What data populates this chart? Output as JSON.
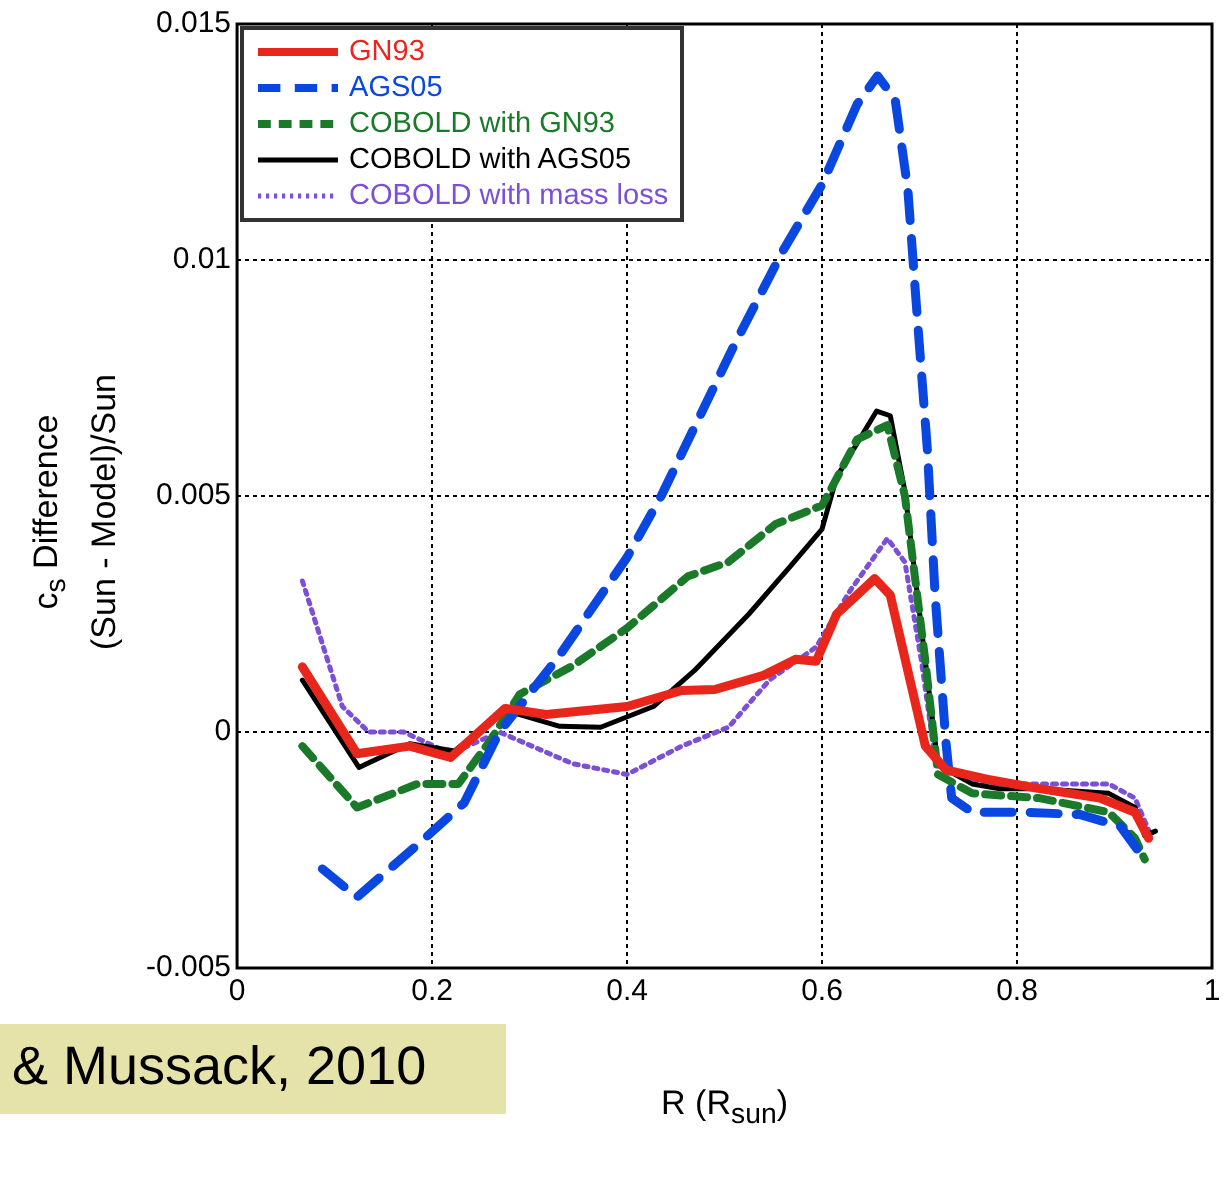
{
  "chart_data": {
    "type": "line",
    "xlabel": "R (R$_{sun}$)",
    "ylabel": "c$_{s}$ Difference\n(Sun - Model)/Sun",
    "xlim": [
      0,
      1
    ],
    "xticks": [
      0,
      0.2,
      0.4,
      0.6,
      0.8,
      1
    ],
    "ylim": [
      -0.005,
      0.015
    ],
    "yticks": [
      -0.005,
      0,
      0.005,
      0.01,
      0.015
    ],
    "grid": true,
    "legend": "top left",
    "marker": "none",
    "annotations": [
      "& Mussack, 2010"
    ],
    "series": [
      {
        "name": "GN93",
        "color": "#e8261c",
        "line_style": "solid",
        "x": [
          0.067,
          0.123,
          0.177,
          0.219,
          0.275,
          0.317,
          0.4,
          0.456,
          0.49,
          0.54,
          0.573,
          0.594,
          0.615,
          0.654,
          0.67,
          0.706,
          0.727,
          0.769,
          0.823,
          0.885,
          0.921,
          0.935
        ],
        "values": [
          0.00138,
          -0.00046,
          -0.0003,
          -0.00054,
          0.0005,
          0.00037,
          0.00054,
          0.00088,
          0.0009,
          0.0012,
          0.00154,
          0.0015,
          0.0025,
          0.00325,
          0.0029,
          -0.0003,
          -0.0008,
          -0.001,
          -0.0012,
          -0.0014,
          -0.0017,
          -0.00225
        ]
      },
      {
        "name": "AGS05",
        "color": "#0a46e0",
        "line_style": "dashed",
        "x": [
          0.0875,
          0.123,
          0.19,
          0.233,
          0.269,
          0.33,
          0.4,
          0.435,
          0.51,
          0.56,
          0.6,
          0.636,
          0.657,
          0.675,
          0.688,
          0.698,
          0.708,
          0.716,
          0.727,
          0.733,
          0.754,
          0.81,
          0.865,
          0.906,
          0.931
        ],
        "values": [
          -0.0029,
          -0.0035,
          -0.0023,
          -0.0015,
          0,
          0.0016,
          0.0037,
          0.005,
          0.0082,
          0.0102,
          0.0116,
          0.0133,
          0.0139,
          0.0134,
          0.0115,
          0.0087,
          0.006,
          0.0029,
          -0.0002,
          -0.0014,
          -0.0017,
          -0.0017,
          -0.00175,
          -0.002,
          -0.0027
        ]
      },
      {
        "name": "COBOLD with GN93",
        "color": "#1a7a2a",
        "line_style": "dashed",
        "x": [
          0.067,
          0.123,
          0.185,
          0.227,
          0.26,
          0.29,
          0.344,
          0.4,
          0.4625,
          0.504,
          0.552,
          0.6,
          0.608,
          0.636,
          0.667,
          0.685,
          0.706,
          0.719,
          0.754,
          0.823,
          0.894,
          0.921,
          0.931
        ],
        "values": [
          -0.0003,
          -0.0016,
          -0.0011,
          -0.0011,
          -0.00017,
          0.0008,
          0.0014,
          0.0022,
          0.0033,
          0.0036,
          0.0044,
          0.0048,
          0.0051,
          0.0062,
          0.0065,
          0.005,
          0.0015,
          -0.0009,
          -0.0013,
          -0.0014,
          -0.0017,
          -0.00225,
          -0.0027
        ]
      },
      {
        "name": "COBOLD with AGS05",
        "color": "#000000",
        "line_style": "solid",
        "x": [
          0.067,
          0.125,
          0.177,
          0.223,
          0.275,
          0.331,
          0.373,
          0.427,
          0.469,
          0.525,
          0.567,
          0.6,
          0.615,
          0.656,
          0.67,
          0.685,
          0.706,
          0.719,
          0.754,
          0.781,
          0.823,
          0.894,
          0.921,
          0.931,
          0.942
        ],
        "values": [
          0.0011,
          -0.00075,
          -0.00025,
          -0.0004,
          0.00046,
          0.00012,
          0.0001,
          0.00054,
          0.0013,
          0.0025,
          0.0035,
          0.0043,
          0.0054,
          0.0068,
          0.0067,
          0.0051,
          0.0015,
          -0.0007,
          -0.0011,
          -0.0012,
          -0.0012,
          -0.0013,
          -0.0016,
          -0.0022,
          -0.0021
        ]
      },
      {
        "name": "COBOLD with mass loss",
        "color": "#7b4fd6",
        "line_style": "dotted",
        "x": [
          0.067,
          0.108,
          0.135,
          0.171,
          0.219,
          0.269,
          0.344,
          0.4,
          0.456,
          0.504,
          0.546,
          0.594,
          0.629,
          0.667,
          0.685,
          0.702,
          0.717,
          0.769,
          0.823,
          0.894,
          0.921,
          0.9375
        ],
        "values": [
          0.0032,
          0.00054,
          0,
          0,
          -0.00046,
          0,
          -0.00067,
          -0.0009,
          -0.0003,
          0.0001,
          0.0011,
          0.0018,
          0.003,
          0.0041,
          0.0036,
          0.0015,
          -0.0007,
          -0.0011,
          -0.0011,
          -0.0011,
          -0.0014,
          -0.0022
        ]
      }
    ]
  }
}
